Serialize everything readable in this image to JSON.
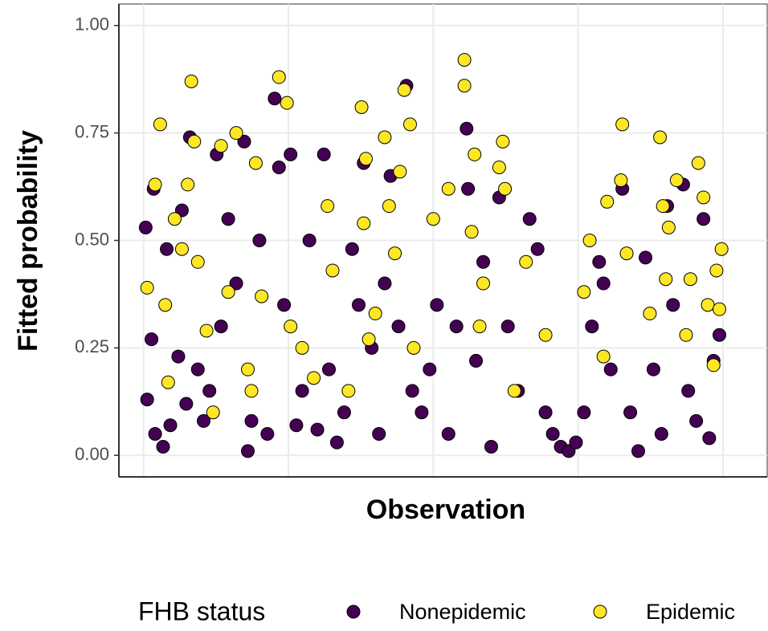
{
  "chart_data": {
    "type": "scatter",
    "x_label": "Observation",
    "y_label": "Fitted probability",
    "legend_title": "FHB status",
    "legend_position": "bottom",
    "grid": true,
    "xlim": [
      -34,
      861
    ],
    "xticks": [
      0,
      200,
      400,
      600,
      800
    ],
    "ylim": [
      -0.05,
      1.05
    ],
    "yticks": [
      {
        "value": 0,
        "label": "0.00"
      },
      {
        "value": 0.25,
        "label": "0.25"
      },
      {
        "value": 0.5,
        "label": "0.50"
      },
      {
        "value": 0.75,
        "label": "0.75"
      },
      {
        "value": 1,
        "label": "1.00"
      }
    ],
    "series": [
      {
        "name": "Nonepidemic",
        "color": "#440154",
        "x": [
          3,
          5,
          11,
          16,
          27,
          14,
          32,
          37,
          48,
          53,
          59,
          64,
          75,
          83,
          91,
          101,
          107,
          117,
          128,
          139,
          144,
          149,
          160,
          171,
          181,
          187,
          194,
          203,
          211,
          219,
          229,
          240,
          249,
          256,
          267,
          277,
          288,
          297,
          304,
          315,
          325,
          333,
          341,
          352,
          363,
          371,
          384,
          395,
          405,
          421,
          432,
          446,
          448,
          459,
          469,
          480,
          491,
          503,
          517,
          533,
          544,
          555,
          565,
          576,
          587,
          597,
          608,
          619,
          629,
          635,
          645,
          661,
          672,
          683,
          693,
          704,
          715,
          723,
          731,
          745,
          752,
          763,
          773,
          781,
          787,
          795
        ],
        "values": [
          0.53,
          0.13,
          0.27,
          0.05,
          0.02,
          0.62,
          0.48,
          0.07,
          0.23,
          0.57,
          0.12,
          0.74,
          0.2,
          0.08,
          0.15,
          0.7,
          0.3,
          0.55,
          0.4,
          0.73,
          0.01,
          0.08,
          0.5,
          0.05,
          0.83,
          0.67,
          0.35,
          0.7,
          0.07,
          0.15,
          0.5,
          0.06,
          0.7,
          0.2,
          0.03,
          0.1,
          0.48,
          0.35,
          0.68,
          0.25,
          0.05,
          0.4,
          0.65,
          0.3,
          0.86,
          0.15,
          0.1,
          0.2,
          0.35,
          0.05,
          0.3,
          0.76,
          0.62,
          0.22,
          0.45,
          0.02,
          0.6,
          0.3,
          0.15,
          0.55,
          0.48,
          0.1,
          0.05,
          0.02,
          0.01,
          0.03,
          0.1,
          0.3,
          0.45,
          0.4,
          0.2,
          0.62,
          0.1,
          0.01,
          0.46,
          0.2,
          0.05,
          0.58,
          0.35,
          0.63,
          0.15,
          0.08,
          0.55,
          0.04,
          0.22,
          0.28
        ]
      },
      {
        "name": "Epidemic",
        "color": "#FDE725",
        "x": [
          5,
          16,
          23,
          30,
          34,
          43,
          53,
          61,
          66,
          70,
          75,
          87,
          96,
          107,
          117,
          128,
          144,
          149,
          155,
          163,
          187,
          198,
          203,
          219,
          235,
          254,
          261,
          283,
          301,
          307,
          304,
          311,
          320,
          333,
          339,
          347,
          354,
          360,
          368,
          373,
          400,
          421,
          443,
          443,
          453,
          457,
          464,
          469,
          491,
          496,
          499,
          512,
          528,
          555,
          608,
          616,
          635,
          640,
          659,
          661,
          667,
          699,
          713,
          717,
          721,
          725,
          736,
          749,
          755,
          766,
          773,
          779,
          787,
          791,
          798,
          795
        ],
        "values": [
          0.39,
          0.63,
          0.77,
          0.35,
          0.17,
          0.55,
          0.48,
          0.63,
          0.87,
          0.73,
          0.45,
          0.29,
          0.1,
          0.72,
          0.38,
          0.75,
          0.2,
          0.15,
          0.68,
          0.37,
          0.88,
          0.82,
          0.3,
          0.25,
          0.18,
          0.58,
          0.43,
          0.15,
          0.81,
          0.69,
          0.54,
          0.27,
          0.33,
          0.74,
          0.58,
          0.47,
          0.66,
          0.85,
          0.77,
          0.25,
          0.55,
          0.62,
          0.92,
          0.86,
          0.52,
          0.7,
          0.3,
          0.4,
          0.67,
          0.73,
          0.62,
          0.15,
          0.45,
          0.28,
          0.38,
          0.5,
          0.23,
          0.59,
          0.64,
          0.77,
          0.47,
          0.33,
          0.74,
          0.58,
          0.41,
          0.53,
          0.64,
          0.28,
          0.41,
          0.68,
          0.6,
          0.35,
          0.21,
          0.43,
          0.48,
          0.34
        ]
      }
    ]
  }
}
